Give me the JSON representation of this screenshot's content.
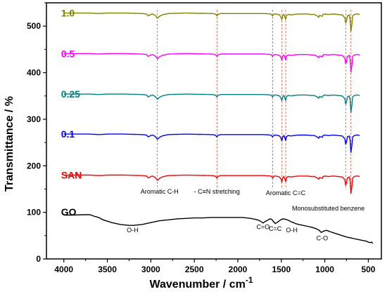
{
  "chart_data": {
    "type": "line",
    "xlabel": "Wavenumber / cm",
    "xlabel_sup": "-1",
    "ylabel": "Transmittance / %",
    "xlim": [
      4200,
      350
    ],
    "ylim": [
      0,
      550
    ],
    "xticks": [
      4000,
      3500,
      3000,
      2500,
      2000,
      1500,
      1000,
      500
    ],
    "yticks": [
      0,
      100,
      200,
      300,
      400,
      500
    ],
    "grid": false,
    "series": [
      {
        "name": "GO",
        "color": "#000000",
        "points": [
          [
            4000,
            94
          ],
          [
            3900,
            94
          ],
          [
            3780,
            95
          ],
          [
            3700,
            95
          ],
          [
            3640,
            91
          ],
          [
            3600,
            89
          ],
          [
            3550,
            84
          ],
          [
            3500,
            81
          ],
          [
            3450,
            78
          ],
          [
            3400,
            76
          ],
          [
            3350,
            74
          ],
          [
            3300,
            73
          ],
          [
            3250,
            72
          ],
          [
            3200,
            72
          ],
          [
            3150,
            73
          ],
          [
            3100,
            74
          ],
          [
            3050,
            76
          ],
          [
            3000,
            78
          ],
          [
            2950,
            80
          ],
          [
            2900,
            82
          ],
          [
            2850,
            83
          ],
          [
            2800,
            84
          ],
          [
            2700,
            86
          ],
          [
            2600,
            87
          ],
          [
            2500,
            88
          ],
          [
            2400,
            88
          ],
          [
            2300,
            89
          ],
          [
            2200,
            89
          ],
          [
            2100,
            89
          ],
          [
            2000,
            89
          ],
          [
            1950,
            89
          ],
          [
            1900,
            88
          ],
          [
            1850,
            87
          ],
          [
            1800,
            85
          ],
          [
            1760,
            83
          ],
          [
            1730,
            80
          ],
          [
            1710,
            77
          ],
          [
            1690,
            80
          ],
          [
            1670,
            82
          ],
          [
            1650,
            84
          ],
          [
            1630,
            86
          ],
          [
            1610,
            85
          ],
          [
            1590,
            80
          ],
          [
            1570,
            76
          ],
          [
            1550,
            78
          ],
          [
            1520,
            82
          ],
          [
            1500,
            85
          ],
          [
            1480,
            86
          ],
          [
            1450,
            85
          ],
          [
            1420,
            83
          ],
          [
            1400,
            81
          ],
          [
            1380,
            79
          ],
          [
            1360,
            78
          ],
          [
            1340,
            76
          ],
          [
            1320,
            75
          ],
          [
            1300,
            74
          ],
          [
            1250,
            72
          ],
          [
            1200,
            70
          ],
          [
            1150,
            68
          ],
          [
            1100,
            65
          ],
          [
            1080,
            63
          ],
          [
            1060,
            61
          ],
          [
            1050,
            58
          ],
          [
            1040,
            57
          ],
          [
            1030,
            58
          ],
          [
            1010,
            60
          ],
          [
            990,
            61
          ],
          [
            970,
            61
          ],
          [
            950,
            59
          ],
          [
            930,
            58
          ],
          [
            900,
            56
          ],
          [
            850,
            53
          ],
          [
            800,
            50
          ],
          [
            750,
            47
          ],
          [
            700,
            45
          ],
          [
            650,
            43
          ],
          [
            600,
            41
          ],
          [
            550,
            39
          ],
          [
            520,
            38
          ],
          [
            500,
            36
          ],
          [
            480,
            35
          ],
          [
            460,
            36
          ],
          [
            450,
            33
          ]
        ]
      },
      {
        "name": "SAN",
        "color": "#ff0000",
        "base": 180,
        "scale": 1.0
      },
      {
        "name": "0.1",
        "color": "#0000ff",
        "base": 268,
        "scale": 1.0
      },
      {
        "name": "0.25",
        "color": "#008080",
        "base": 354,
        "scale": 1.0
      },
      {
        "name": "0.5",
        "color": "#ff00ff",
        "base": 441,
        "scale": 1.0
      },
      {
        "name": "1.0",
        "color": "#808000",
        "base": 528,
        "scale": 1.0
      }
    ],
    "shared_profile": [
      [
        4000,
        0
      ],
      [
        3700,
        0
      ],
      [
        3600,
        -1
      ],
      [
        3500,
        0
      ],
      [
        3300,
        0
      ],
      [
        3100,
        -1
      ],
      [
        3050,
        -2
      ],
      [
        3030,
        -6
      ],
      [
        3000,
        -3
      ],
      [
        2980,
        -2
      ],
      [
        2950,
        -5
      ],
      [
        2925,
        -11
      ],
      [
        2900,
        -7
      ],
      [
        2870,
        -4
      ],
      [
        2850,
        -3
      ],
      [
        2800,
        -1
      ],
      [
        2600,
        0
      ],
      [
        2300,
        -1
      ],
      [
        2260,
        -2
      ],
      [
        2240,
        -6
      ],
      [
        2230,
        -3
      ],
      [
        2200,
        -1
      ],
      [
        2000,
        -1
      ],
      [
        1800,
        -1
      ],
      [
        1700,
        -1
      ],
      [
        1620,
        -2
      ],
      [
        1600,
        -6
      ],
      [
        1590,
        -3
      ],
      [
        1580,
        -2
      ],
      [
        1560,
        -2
      ],
      [
        1520,
        -4
      ],
      [
        1500,
        -10
      ],
      [
        1493,
        -15
      ],
      [
        1485,
        -6
      ],
      [
        1470,
        -3
      ],
      [
        1455,
        -11
      ],
      [
        1450,
        -14
      ],
      [
        1440,
        -5
      ],
      [
        1420,
        -3
      ],
      [
        1380,
        -4
      ],
      [
        1360,
        -3
      ],
      [
        1300,
        -2
      ],
      [
        1200,
        -2
      ],
      [
        1160,
        -3
      ],
      [
        1120,
        -3
      ],
      [
        1080,
        -7
      ],
      [
        1070,
        -9
      ],
      [
        1060,
        -5
      ],
      [
        1030,
        -7
      ],
      [
        1020,
        -3
      ],
      [
        1000,
        -2
      ],
      [
        960,
        -3
      ],
      [
        900,
        -2
      ],
      [
        850,
        -3
      ],
      [
        800,
        -4
      ],
      [
        770,
        -10
      ],
      [
        760,
        -22
      ],
      [
        750,
        -16
      ],
      [
        740,
        -6
      ],
      [
        720,
        -4
      ],
      [
        710,
        -12
      ],
      [
        700,
        -40
      ],
      [
        690,
        -25
      ],
      [
        680,
        -6
      ],
      [
        660,
        -3
      ],
      [
        640,
        -2
      ],
      [
        620,
        -2
      ],
      [
        600,
        -3
      ]
    ],
    "vlines": [
      2925,
      2240,
      1600,
      1493,
      1450,
      760,
      700
    ],
    "annotations": [
      {
        "text": "Aromatic C-H",
        "x": 2900,
        "y": 140
      },
      {
        "text": "- C≡N stretching",
        "x": 2240,
        "y": 140
      },
      {
        "text": "Aromatic C=C",
        "x": 1450,
        "y": 137
      },
      {
        "text": "Monosubstituted benzene",
        "x": 960,
        "y": 104
      },
      {
        "text": "O-H",
        "x": 3210,
        "y": 57
      },
      {
        "text": "C=O",
        "x": 1710,
        "y": 64
      },
      {
        "text": "C=C",
        "x": 1570,
        "y": 60
      },
      {
        "text": "O-H",
        "x": 1380,
        "y": 57
      },
      {
        "text": "C-O",
        "x": 1030,
        "y": 40
      }
    ],
    "series_labels": [
      {
        "text": "1.0",
        "x": 4000,
        "y": 528,
        "color": "#808000"
      },
      {
        "text": "0.5",
        "x": 4000,
        "y": 441,
        "color": "#ff00ff"
      },
      {
        "text": "0.25",
        "x": 4000,
        "y": 354,
        "color": "#008080"
      },
      {
        "text": "0.1",
        "x": 4000,
        "y": 268,
        "color": "#0000ff"
      },
      {
        "text": "SAN",
        "x": 4000,
        "y": 180,
        "color": "#ff0000"
      },
      {
        "text": "GO",
        "x": 4000,
        "y": 101,
        "color": "#000000"
      }
    ]
  }
}
